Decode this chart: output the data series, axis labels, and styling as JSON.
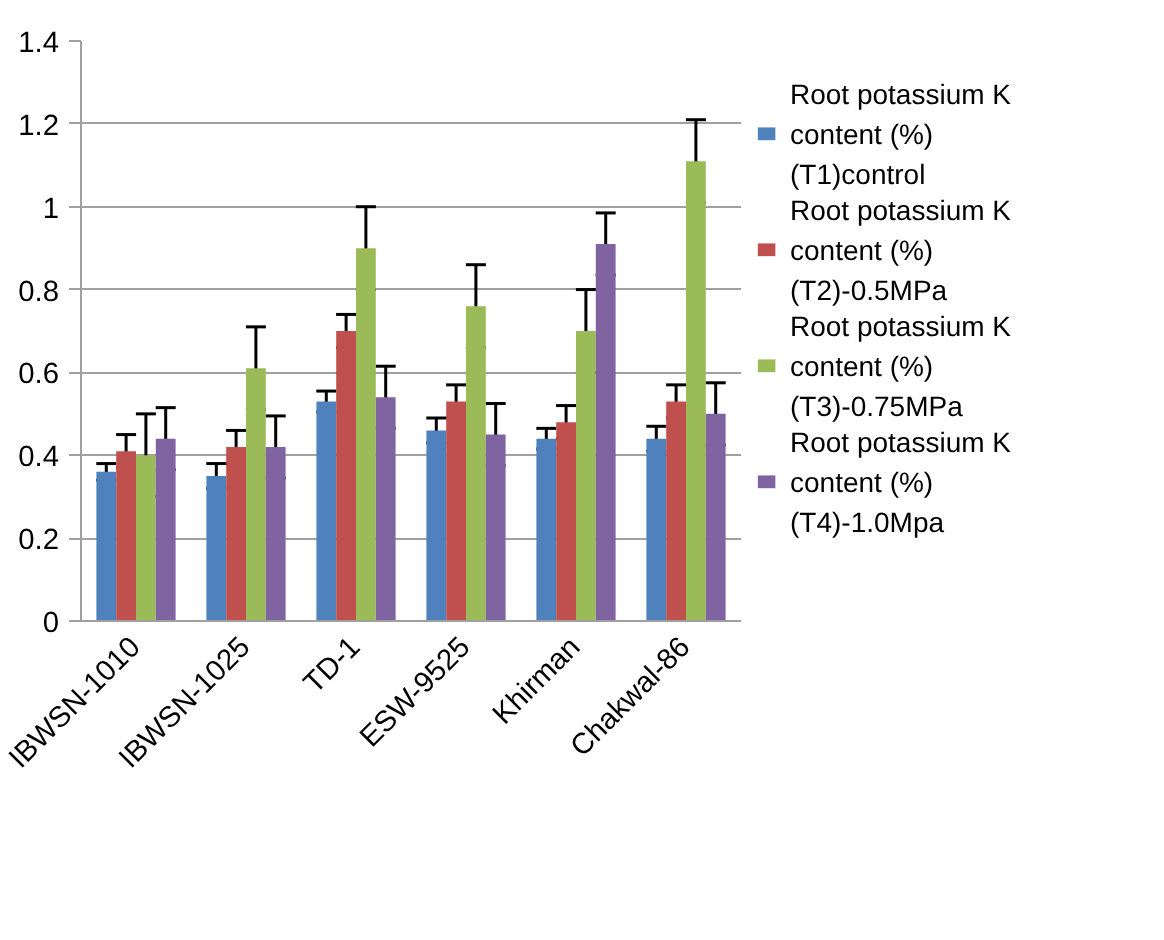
{
  "chart_data": {
    "type": "bar",
    "categories": [
      "IBWSN-1010",
      "IBWSN-1025",
      "TD-1",
      "ESW-9525",
      "Khirman",
      "Chakwal-86"
    ],
    "series": [
      {
        "name": "Root potassium K content (%) (T1)control",
        "color": "#4f81bd",
        "values": [
          0.36,
          0.35,
          0.53,
          0.46,
          0.44,
          0.44
        ],
        "errors": [
          0.02,
          0.03,
          0.025,
          0.03,
          0.025,
          0.03
        ]
      },
      {
        "name": "Root potassium K content (%) (T2)-0.5MPa",
        "color": "#c0504d",
        "values": [
          0.41,
          0.42,
          0.7,
          0.53,
          0.48,
          0.53
        ],
        "errors": [
          0.04,
          0.04,
          0.04,
          0.04,
          0.04,
          0.04
        ]
      },
      {
        "name": "Root potassium K content (%) (T3)-0.75MPa",
        "color": "#9bbb59",
        "values": [
          0.4,
          0.61,
          0.9,
          0.76,
          0.7,
          1.11
        ],
        "errors": [
          0.1,
          0.1,
          0.1,
          0.1,
          0.1,
          0.1
        ]
      },
      {
        "name": "Root potassium K content (%) (T4)-1.0Mpa",
        "color": "#8064a2",
        "values": [
          0.44,
          0.42,
          0.54,
          0.45,
          0.91,
          0.5
        ],
        "errors": [
          0.075,
          0.075,
          0.075,
          0.075,
          0.075,
          0.075
        ]
      }
    ],
    "ylim": [
      0,
      1.4
    ],
    "yticks": [
      0,
      0.2,
      0.4,
      0.6,
      0.8,
      1,
      1.2,
      1.4
    ],
    "grid": "y",
    "legend": "right"
  }
}
